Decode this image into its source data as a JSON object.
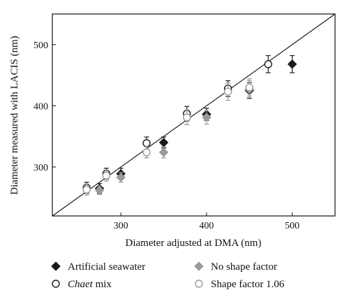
{
  "chart_data": {
    "type": "scatter",
    "xlabel": "Diameter adjusted at DMA (nm)",
    "ylabel": "Diameter measured with LACIS (nm)",
    "xlim": [
      220,
      550
    ],
    "ylim": [
      220,
      550
    ],
    "xticks": [
      300,
      400,
      500
    ],
    "yticks": [
      300,
      400,
      500
    ],
    "reference_line": "y = x",
    "grid": false,
    "legend_position": "bottom",
    "series": [
      {
        "name": "Artificial seawater",
        "marker": "filled-diamond",
        "color": "#1a1a1a",
        "points": [
          {
            "x": 275,
            "y": 265,
            "err": 8
          },
          {
            "x": 300,
            "y": 289,
            "err": 9
          },
          {
            "x": 350,
            "y": 340,
            "err": 9
          },
          {
            "x": 400,
            "y": 386,
            "err": 10
          },
          {
            "x": 450,
            "y": 425,
            "err": 13
          },
          {
            "x": 500,
            "y": 468,
            "err": 14
          }
        ]
      },
      {
        "name": "Chaet mix",
        "name_italic": "Chaet",
        "name_rest": " mix",
        "marker": "open-circle",
        "color": "#1a1a1a",
        "points": [
          {
            "x": 260,
            "y": 266,
            "err": 9
          },
          {
            "x": 283,
            "y": 289,
            "err": 9
          },
          {
            "x": 330,
            "y": 339,
            "err": 10
          },
          {
            "x": 377,
            "y": 387,
            "err": 12
          },
          {
            "x": 425,
            "y": 428,
            "err": 13
          },
          {
            "x": 472,
            "y": 468,
            "err": 14
          }
        ]
      },
      {
        "name": "No shape factor",
        "marker": "filled-diamond",
        "color": "#9a9a9a",
        "points": [
          {
            "x": 275,
            "y": 262,
            "err": 7
          },
          {
            "x": 300,
            "y": 283,
            "err": 8
          },
          {
            "x": 350,
            "y": 324,
            "err": 9
          },
          {
            "x": 400,
            "y": 381,
            "err": 11
          },
          {
            "x": 450,
            "y": 427,
            "err": 14
          }
        ]
      },
      {
        "name": "Shape factor 1.06",
        "marker": "open-circle",
        "color": "#9a9a9a",
        "points": [
          {
            "x": 260,
            "y": 263,
            "err": 9
          },
          {
            "x": 283,
            "y": 286,
            "err": 9
          },
          {
            "x": 330,
            "y": 324,
            "err": 9
          },
          {
            "x": 377,
            "y": 381,
            "err": 12
          },
          {
            "x": 425,
            "y": 423,
            "err": 14
          },
          {
            "x": 450,
            "y": 430,
            "err": 14
          }
        ]
      }
    ]
  }
}
